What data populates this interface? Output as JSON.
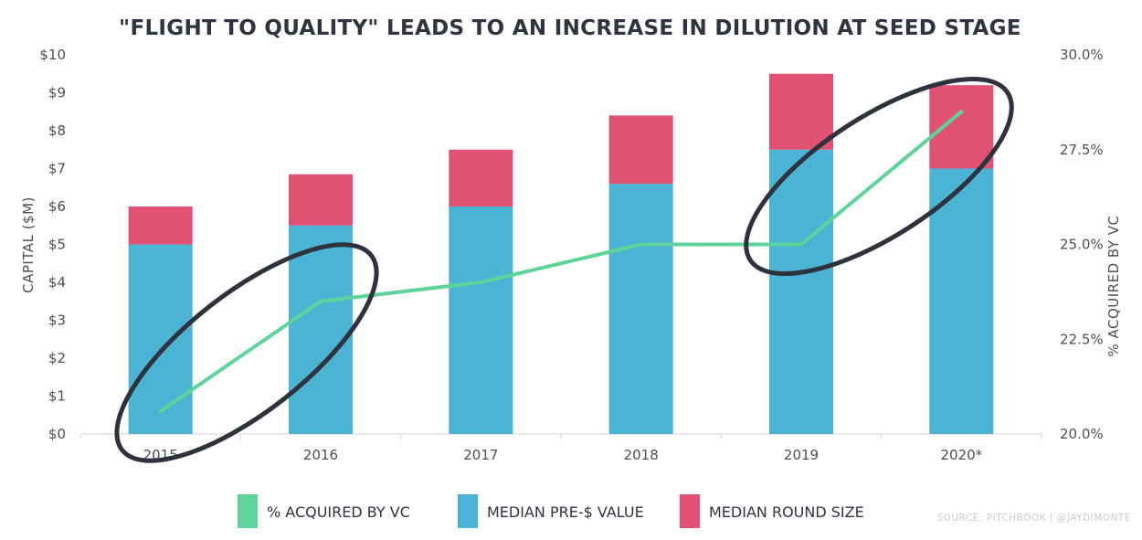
{
  "chart_data": {
    "type": "bar",
    "title": "\"FLIGHT TO QUALITY\" LEADS TO AN INCREASE IN DILUTION AT SEED STAGE",
    "categories": [
      "2015",
      "2016",
      "2017",
      "2018",
      "2019",
      "2020*"
    ],
    "series": [
      {
        "name": "MEDIAN PRE-$ VALUE",
        "type": "bar",
        "axis": "left",
        "values": [
          5.0,
          5.5,
          6.0,
          6.6,
          7.5,
          7.0
        ]
      },
      {
        "name": "MEDIAN ROUND SIZE",
        "type": "bar",
        "axis": "left",
        "stacked": true,
        "values": [
          1.0,
          1.35,
          1.5,
          1.8,
          2.0,
          2.2
        ]
      },
      {
        "name": "% ACQUIRED BY VC",
        "type": "line",
        "axis": "right",
        "values": [
          20.6,
          23.5,
          24.0,
          25.0,
          25.0,
          28.5
        ]
      }
    ],
    "ylabel": "CAPITAL ($M)",
    "ylim": [
      0,
      10
    ],
    "y_ticks": [
      "$0",
      "$1",
      "$2",
      "$3",
      "$4",
      "$5",
      "$6",
      "$7",
      "$8",
      "$9",
      "$10"
    ],
    "y2label": "% ACQUIRED BY VC",
    "y2lim": [
      20,
      30
    ],
    "y2_ticks": [
      "20.0%",
      "22.5%",
      "25.0%",
      "27.5%",
      "30.0%"
    ],
    "legend_placement": "bottom",
    "grid": false,
    "annotations": [
      "ellipse around 2015–2016",
      "ellipse around 2019–2020*"
    ],
    "source": "SOURCE: PITCHBOOK | @JAYDIMONTE",
    "colors": {
      "pre_value": "#4bb3d3",
      "round_size": "#e05174",
      "line": "#5ed39a",
      "ellipse": "#2d323c"
    }
  }
}
